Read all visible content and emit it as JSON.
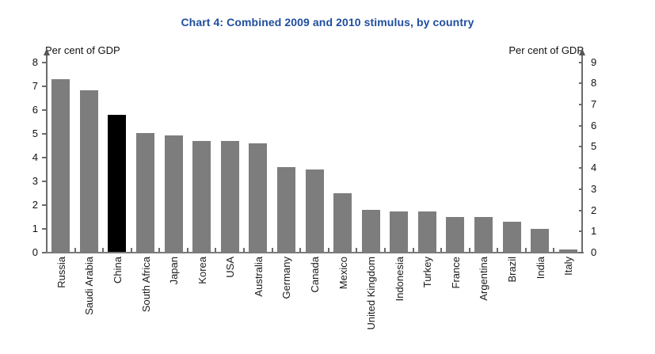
{
  "title": "Chart 4: Combined 2009 and 2010 stimulus, by country",
  "title_color": "#1F4E9E",
  "left_axis": {
    "unit_label": "Per cent of GDP"
  },
  "right_axis": {
    "unit_label": "Per cent of GDP"
  },
  "chart_data": {
    "type": "bar",
    "title": "Chart 4: Combined 2009 and 2010 stimulus, by country",
    "xlabel": "",
    "ylabel_left": "Per cent of GDP",
    "ylabel_right": "Per cent of GDP",
    "categories": [
      "Russia",
      "Saudi Arabia",
      "China",
      "South Africa",
      "Japan",
      "Korea",
      "USA",
      "Australia",
      "Germany",
      "Canada",
      "Mexico",
      "United Kingdom",
      "Indonesia",
      "Turkey",
      "France",
      "Argentina",
      "Brazil",
      "India",
      "Italy"
    ],
    "values": [
      7.25,
      6.8,
      5.75,
      5.0,
      4.9,
      4.65,
      4.65,
      4.55,
      3.55,
      3.45,
      2.45,
      1.75,
      1.7,
      1.7,
      1.45,
      1.45,
      1.25,
      0.95,
      0.1
    ],
    "highlight_category": "China",
    "bar_color": "#7d7d7d",
    "highlight_color": "#000000",
    "ylim_left": [
      0,
      8
    ],
    "ylim_right": [
      0,
      9
    ],
    "yticks_left": [
      0,
      1,
      2,
      3,
      4,
      5,
      6,
      7,
      8
    ],
    "yticks_right": [
      0,
      1,
      2,
      3,
      4,
      5,
      6,
      7,
      8,
      9
    ],
    "grid": false,
    "legend": false
  }
}
